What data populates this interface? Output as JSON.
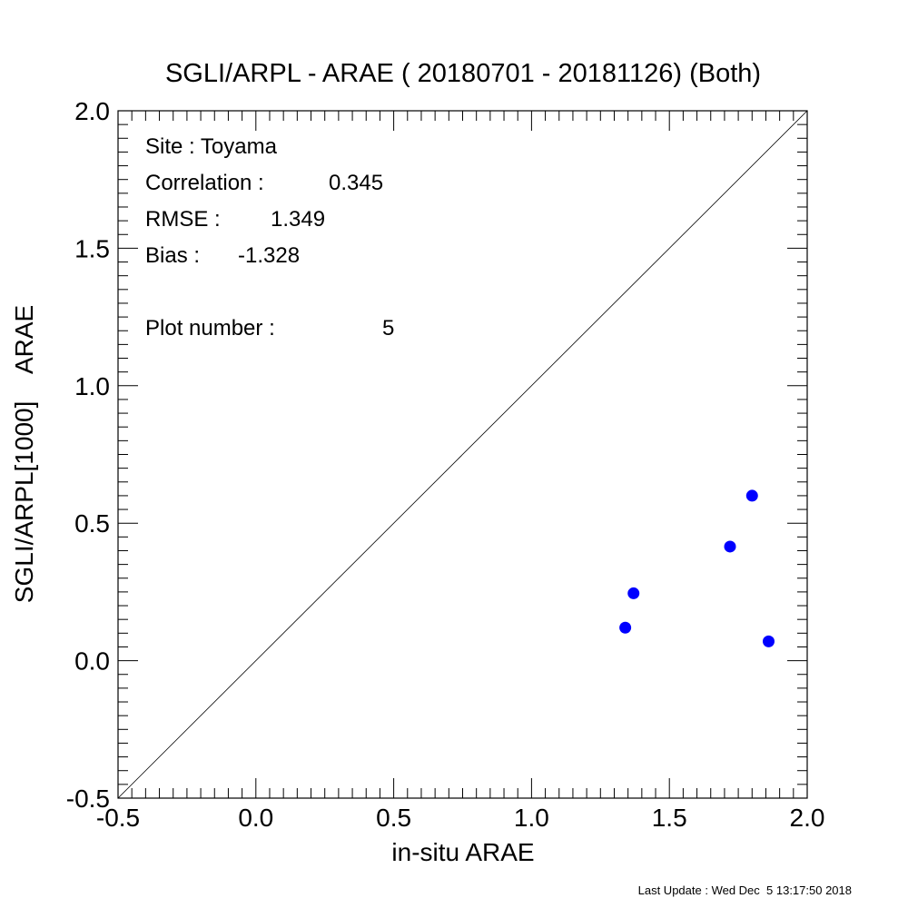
{
  "chart_data": {
    "type": "scatter",
    "title": "SGLI/ARPL - ARAE ( 20180701 - 20181126) (Both)",
    "xlabel": "in-situ ARAE",
    "ylabel": "SGLI/ARPL[1000]    ARAE",
    "xlim": [
      -0.5,
      2.0
    ],
    "ylim": [
      -0.5,
      2.0
    ],
    "x_ticks": [
      "-0.5",
      "0.0",
      "0.5",
      "1.0",
      "1.5",
      "2.0"
    ],
    "y_ticks": [
      "-0.5",
      "0.0",
      "0.5",
      "1.0",
      "1.5",
      "2.0"
    ],
    "reference_line": "1:1",
    "grid": false,
    "series": [
      {
        "points": [
          {
            "x": 1.34,
            "y": 0.12
          },
          {
            "x": 1.37,
            "y": 0.245
          },
          {
            "x": 1.72,
            "y": 0.415
          },
          {
            "x": 1.8,
            "y": 0.6
          },
          {
            "x": 1.86,
            "y": 0.07
          }
        ],
        "color": "#0000ff"
      }
    ],
    "annotations": {
      "site": "Site : Toyama",
      "correlation_label": "Correlation :",
      "correlation_value": "0.345",
      "rmse_label": "RMSE :",
      "rmse_value": "1.349",
      "bias_label": "Bias :",
      "bias_value": "-1.328",
      "plot_number_label": "Plot number :",
      "plot_number_value": "5"
    }
  },
  "footer": "Last Update : Wed Dec  5 13:17:50 2018"
}
